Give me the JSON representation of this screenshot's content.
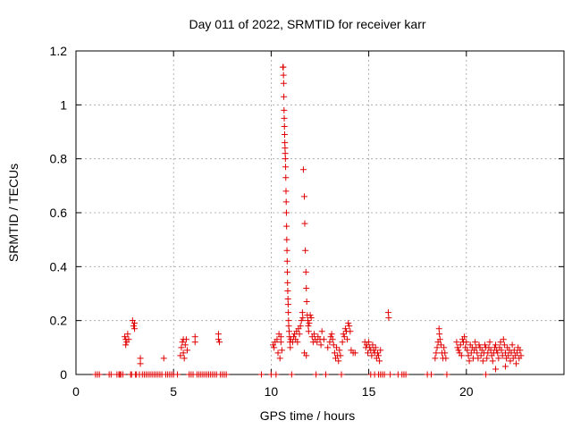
{
  "chart_data": {
    "type": "scatter",
    "title": "Day 011 of 2022, SRMTID for receiver karr",
    "xlabel": "GPS time / hours",
    "ylabel": "SRMTID / TECUs",
    "xlim": [
      0,
      25
    ],
    "ylim": [
      0,
      1.2
    ],
    "xticks": [
      0,
      5,
      10,
      15,
      20
    ],
    "xtick_labels": [
      "0",
      "5",
      "10",
      "15",
      "20"
    ],
    "yticks": [
      0,
      0.2,
      0.4,
      0.6,
      0.8,
      1.0,
      1.2
    ],
    "ytick_labels": [
      "0",
      "0.2",
      "0.4",
      "0.6",
      "0.8",
      "1",
      "1.2"
    ],
    "grid": true,
    "marker": "+",
    "color": "#e00000",
    "series": [
      {
        "name": "SRMTID",
        "points": [
          [
            1.0,
            0
          ],
          [
            1.1,
            0
          ],
          [
            1.2,
            0
          ],
          [
            1.7,
            0
          ],
          [
            1.8,
            0
          ],
          [
            2.1,
            0
          ],
          [
            2.2,
            0
          ],
          [
            2.25,
            0
          ],
          [
            2.3,
            0
          ],
          [
            2.4,
            0
          ],
          [
            2.5,
            0.14
          ],
          [
            2.55,
            0.13
          ],
          [
            2.6,
            0.12
          ],
          [
            2.65,
            0.15
          ],
          [
            2.7,
            0.13
          ],
          [
            2.55,
            0.11
          ],
          [
            2.8,
            0
          ],
          [
            2.85,
            0
          ],
          [
            2.9,
            0.2
          ],
          [
            2.95,
            0.18
          ],
          [
            3.0,
            0.19
          ],
          [
            3.0,
            0.17
          ],
          [
            3.05,
            0
          ],
          [
            3.1,
            0
          ],
          [
            3.3,
            0.06
          ],
          [
            3.3,
            0.04
          ],
          [
            3.25,
            0
          ],
          [
            3.4,
            0
          ],
          [
            3.5,
            0
          ],
          [
            3.6,
            0
          ],
          [
            3.7,
            0
          ],
          [
            3.8,
            0
          ],
          [
            3.9,
            0
          ],
          [
            4.0,
            0
          ],
          [
            4.1,
            0
          ],
          [
            4.2,
            0
          ],
          [
            4.3,
            0
          ],
          [
            4.4,
            0
          ],
          [
            4.5,
            0.06
          ],
          [
            4.6,
            0
          ],
          [
            4.7,
            0
          ],
          [
            4.8,
            0
          ],
          [
            4.9,
            0
          ],
          [
            5.0,
            0
          ],
          [
            5.2,
            0
          ],
          [
            5.35,
            0.07
          ],
          [
            5.4,
            0.1
          ],
          [
            5.45,
            0.12
          ],
          [
            5.5,
            0.08
          ],
          [
            5.5,
            0.13
          ],
          [
            5.55,
            0.06
          ],
          [
            5.6,
            0.11
          ],
          [
            5.65,
            0.13
          ],
          [
            5.7,
            0.09
          ],
          [
            5.8,
            0
          ],
          [
            5.9,
            0
          ],
          [
            6.0,
            0
          ],
          [
            6.1,
            0.14
          ],
          [
            6.1,
            0.12
          ],
          [
            6.2,
            0
          ],
          [
            6.3,
            0
          ],
          [
            6.4,
            0
          ],
          [
            6.5,
            0
          ],
          [
            6.6,
            0
          ],
          [
            6.7,
            0
          ],
          [
            6.8,
            0
          ],
          [
            6.9,
            0
          ],
          [
            7.0,
            0
          ],
          [
            7.1,
            0
          ],
          [
            7.2,
            0
          ],
          [
            7.3,
            0.15
          ],
          [
            7.3,
            0.13
          ],
          [
            7.35,
            0.12
          ],
          [
            7.4,
            0
          ],
          [
            7.5,
            0
          ],
          [
            7.6,
            0
          ],
          [
            7.7,
            0
          ],
          [
            9.5,
            0
          ],
          [
            10.0,
            0
          ],
          [
            10.1,
            0.11
          ],
          [
            10.15,
            0.1
          ],
          [
            10.2,
            0.12
          ],
          [
            10.25,
            0
          ],
          [
            10.3,
            0.13
          ],
          [
            10.35,
            0.08
          ],
          [
            10.4,
            0.15
          ],
          [
            10.45,
            0.06
          ],
          [
            10.5,
            0.14
          ],
          [
            10.55,
            0.09
          ],
          [
            10.5,
            0.12
          ],
          [
            10.6,
            1.14
          ],
          [
            10.62,
            1.14
          ],
          [
            10.63,
            1.11
          ],
          [
            10.64,
            1.08
          ],
          [
            10.65,
            1.03
          ],
          [
            10.66,
            0.98
          ],
          [
            10.67,
            0.95
          ],
          [
            10.68,
            0.92
          ],
          [
            10.69,
            0.89
          ],
          [
            10.7,
            0.86
          ],
          [
            10.71,
            0.84
          ],
          [
            10.72,
            0.82
          ],
          [
            10.73,
            0.8
          ],
          [
            10.74,
            0.77
          ],
          [
            10.75,
            0.73
          ],
          [
            10.76,
            0.68
          ],
          [
            10.77,
            0.64
          ],
          [
            10.78,
            0.6
          ],
          [
            10.79,
            0.55
          ],
          [
            10.8,
            0.5
          ],
          [
            10.81,
            0.46
          ],
          [
            10.82,
            0.42
          ],
          [
            10.83,
            0.38
          ],
          [
            10.84,
            0.34
          ],
          [
            10.85,
            0.31
          ],
          [
            10.86,
            0.28
          ],
          [
            10.87,
            0.26
          ],
          [
            10.88,
            0.23
          ],
          [
            10.89,
            0.2
          ],
          [
            10.9,
            0.18
          ],
          [
            10.92,
            0.16
          ],
          [
            10.94,
            0.14
          ],
          [
            10.96,
            0.12
          ],
          [
            10.98,
            0.1
          ],
          [
            11.0,
            0.13
          ],
          [
            11.05,
            0
          ],
          [
            11.1,
            0.12
          ],
          [
            11.15,
            0.14
          ],
          [
            11.2,
            0.15
          ],
          [
            11.25,
            0.13
          ],
          [
            11.3,
            0.16
          ],
          [
            11.35,
            0.12
          ],
          [
            11.4,
            0.17
          ],
          [
            11.45,
            0.15
          ],
          [
            11.5,
            0.18
          ],
          [
            11.55,
            0.2
          ],
          [
            11.6,
            0.23
          ],
          [
            11.62,
            0.21
          ],
          [
            11.65,
            0.76
          ],
          [
            11.7,
            0.66
          ],
          [
            11.72,
            0.56
          ],
          [
            11.75,
            0.46
          ],
          [
            11.78,
            0.38
          ],
          [
            11.8,
            0.32
          ],
          [
            11.82,
            0.27
          ],
          [
            11.85,
            0.22
          ],
          [
            11.88,
            0.2
          ],
          [
            11.9,
            0.18
          ],
          [
            11.92,
            0.16
          ],
          [
            11.95,
            0.19
          ],
          [
            12.0,
            0.22
          ],
          [
            12.05,
            0.21
          ],
          [
            12.1,
            0.14
          ],
          [
            12.15,
            0.12
          ],
          [
            11.7,
            0.08
          ],
          [
            11.8,
            0.07
          ],
          [
            12.2,
            0.15
          ],
          [
            12.25,
            0.13
          ],
          [
            12.3,
            0
          ],
          [
            12.35,
            0.12
          ],
          [
            12.4,
            0.14
          ],
          [
            12.5,
            0.13
          ],
          [
            12.55,
            0.11
          ],
          [
            12.6,
            0.16
          ],
          [
            12.7,
            0.13
          ],
          [
            12.8,
            0
          ],
          [
            12.9,
            0.1
          ],
          [
            13.0,
            0.12
          ],
          [
            13.05,
            0.14
          ],
          [
            13.1,
            0.15
          ],
          [
            13.15,
            0.13
          ],
          [
            13.2,
            0.11
          ],
          [
            13.25,
            0.08
          ],
          [
            13.3,
            0.06
          ],
          [
            13.35,
            0.1
          ],
          [
            13.4,
            0.07
          ],
          [
            13.45,
            0.05
          ],
          [
            13.5,
            0.09
          ],
          [
            13.55,
            0.07
          ],
          [
            13.6,
            0
          ],
          [
            13.65,
            0.12
          ],
          [
            13.7,
            0.15
          ],
          [
            13.75,
            0.14
          ],
          [
            13.8,
            0.17
          ],
          [
            13.85,
            0.16
          ],
          [
            13.9,
            0.13
          ],
          [
            13.95,
            0.19
          ],
          [
            14.0,
            0.18
          ],
          [
            14.05,
            0.16
          ],
          [
            14.1,
            0.09
          ],
          [
            14.2,
            0.08
          ],
          [
            14.3,
            0.08
          ],
          [
            14.8,
            0.12
          ],
          [
            14.85,
            0.1
          ],
          [
            14.9,
            0.11
          ],
          [
            14.95,
            0.08
          ],
          [
            15.0,
            0.12
          ],
          [
            15.05,
            0.1
          ],
          [
            15.1,
            0.09
          ],
          [
            15.15,
            0.07
          ],
          [
            15.2,
            0.11
          ],
          [
            15.25,
            0.09
          ],
          [
            15.3,
            0.08
          ],
          [
            15.35,
            0.1
          ],
          [
            15.4,
            0.06
          ],
          [
            15.45,
            0.08
          ],
          [
            15.5,
            0.07
          ],
          [
            15.55,
            0.05
          ],
          [
            15.6,
            0.09
          ],
          [
            15.1,
            0
          ],
          [
            15.3,
            0
          ],
          [
            15.5,
            0
          ],
          [
            15.6,
            0
          ],
          [
            15.7,
            0
          ],
          [
            15.8,
            0
          ],
          [
            16.0,
            0.23
          ],
          [
            16.02,
            0.21
          ],
          [
            16.1,
            0
          ],
          [
            16.5,
            0
          ],
          [
            16.7,
            0
          ],
          [
            16.8,
            0
          ],
          [
            16.9,
            0
          ],
          [
            18.0,
            0
          ],
          [
            18.2,
            0
          ],
          [
            18.4,
            0.06
          ],
          [
            18.45,
            0.08
          ],
          [
            18.5,
            0.1
          ],
          [
            18.55,
            0.12
          ],
          [
            18.6,
            0.17
          ],
          [
            18.62,
            0.15
          ],
          [
            18.65,
            0.13
          ],
          [
            18.7,
            0.11
          ],
          [
            18.75,
            0.08
          ],
          [
            18.8,
            0.06
          ],
          [
            18.85,
            0.1
          ],
          [
            18.9,
            0.08
          ],
          [
            18.95,
            0.06
          ],
          [
            19.0,
            0
          ],
          [
            19.5,
            0.12
          ],
          [
            19.55,
            0.1
          ],
          [
            19.6,
            0.09
          ],
          [
            19.65,
            0.08
          ],
          [
            19.7,
            0.11
          ],
          [
            19.75,
            0.07
          ],
          [
            19.8,
            0.13
          ],
          [
            19.85,
            0.12
          ],
          [
            19.9,
            0.14
          ],
          [
            19.95,
            0.1
          ],
          [
            20.0,
            0.12
          ],
          [
            20.05,
            0.09
          ],
          [
            20.1,
            0.07
          ],
          [
            20.15,
            0.05
          ],
          [
            20.2,
            0.11
          ],
          [
            20.25,
            0.08
          ],
          [
            20.3,
            0.1
          ],
          [
            20.35,
            0.06
          ],
          [
            20.4,
            0.09
          ],
          [
            20.45,
            0.12
          ],
          [
            20.5,
            0.1
          ],
          [
            20.55,
            0.08
          ],
          [
            20.6,
            0.06
          ],
          [
            20.65,
            0.11
          ],
          [
            20.7,
            0.1
          ],
          [
            20.75,
            0.07
          ],
          [
            20.8,
            0.09
          ],
          [
            20.85,
            0.05
          ],
          [
            20.9,
            0.08
          ],
          [
            20.95,
            0.11
          ],
          [
            21.0,
            0.1
          ],
          [
            21.05,
            0.06
          ],
          [
            21.1,
            0.08
          ],
          [
            21.15,
            0.1
          ],
          [
            21.2,
            0.12
          ],
          [
            21.25,
            0.09
          ],
          [
            21.3,
            0.07
          ],
          [
            21.35,
            0.05
          ],
          [
            21.4,
            0.08
          ],
          [
            21.45,
            0.1
          ],
          [
            21.5,
            0.11
          ],
          [
            21.55,
            0.09
          ],
          [
            21.6,
            0.08
          ],
          [
            21.65,
            0.06
          ],
          [
            21.7,
            0.1
          ],
          [
            21.75,
            0.12
          ],
          [
            21.8,
            0.09
          ],
          [
            21.85,
            0.07
          ],
          [
            21.9,
            0.13
          ],
          [
            21.95,
            0.11
          ],
          [
            22.0,
            0.08
          ],
          [
            22.05,
            0.06
          ],
          [
            22.1,
            0.1
          ],
          [
            22.15,
            0.07
          ],
          [
            22.2,
            0.09
          ],
          [
            22.25,
            0.05
          ],
          [
            22.3,
            0.08
          ],
          [
            22.35,
            0.11
          ],
          [
            22.4,
            0.06
          ],
          [
            22.45,
            0.09
          ],
          [
            22.5,
            0.07
          ],
          [
            22.55,
            0.04
          ],
          [
            22.6,
            0.08
          ],
          [
            22.65,
            0.1
          ],
          [
            22.7,
            0.06
          ],
          [
            22.75,
            0.09
          ],
          [
            22.8,
            0.07
          ],
          [
            21.0,
            0
          ],
          [
            21.5,
            0.02
          ],
          [
            22.0,
            0.03
          ]
        ]
      }
    ]
  }
}
